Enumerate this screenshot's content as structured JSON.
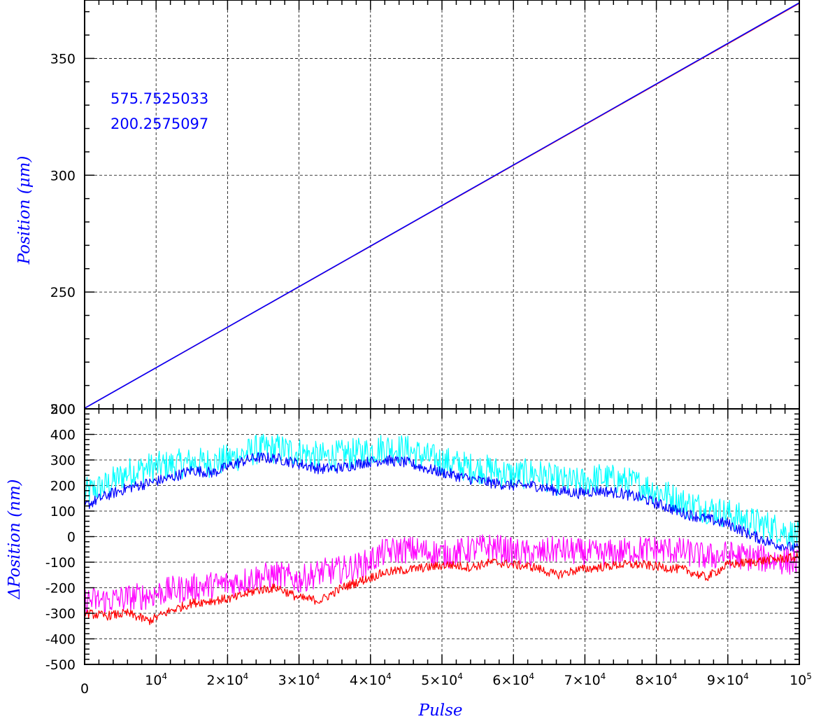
{
  "colors": {
    "frame": "#000000",
    "grid": "#000000",
    "label_blue": "#0000ff",
    "series_blue": "#0000ff",
    "series_red": "#ff0000",
    "series_cyan": "#00ffff",
    "series_magenta": "#ff00ff"
  },
  "x_axis": {
    "title": "Pulse",
    "ticks": [
      {
        "value": 0,
        "base": "0",
        "exp": ""
      },
      {
        "value": 10000,
        "base": "10",
        "exp": "4"
      },
      {
        "value": 20000,
        "base": "2×10",
        "exp": "4"
      },
      {
        "value": 30000,
        "base": "3×10",
        "exp": "4"
      },
      {
        "value": 40000,
        "base": "4×10",
        "exp": "4"
      },
      {
        "value": 50000,
        "base": "5×10",
        "exp": "4"
      },
      {
        "value": 60000,
        "base": "6×10",
        "exp": "4"
      },
      {
        "value": 70000,
        "base": "7×10",
        "exp": "4"
      },
      {
        "value": 80000,
        "base": "8×10",
        "exp": "4"
      },
      {
        "value": 90000,
        "base": "9×10",
        "exp": "4"
      },
      {
        "value": 100000,
        "base": "10",
        "exp": "5"
      }
    ]
  },
  "chart_data": [
    {
      "type": "line",
      "ylabel": "Position (μm)",
      "xlim": [
        0,
        100000
      ],
      "ylim": [
        200,
        375
      ],
      "yticks": [
        200,
        250,
        300,
        350
      ],
      "grid": true,
      "annotations": [
        "575.7525033",
        "200.2575097"
      ],
      "series": [
        {
          "color": "red",
          "x": [
            0,
            100000
          ],
          "y": [
            200.26,
            373.6
          ]
        },
        {
          "color": "blue",
          "x": [
            0,
            100000
          ],
          "y": [
            200.26,
            373.8
          ]
        }
      ]
    },
    {
      "type": "line",
      "ylabel": "ΔPosition (nm)",
      "xlim": [
        0,
        100000
      ],
      "ylim": [
        -500,
        500
      ],
      "yticks": [
        -500,
        -400,
        -300,
        -200,
        -100,
        0,
        100,
        200,
        300,
        400,
        500
      ],
      "grid": true,
      "series": [
        {
          "color": "cyan",
          "noise": 60,
          "x": [
            0,
            3000,
            6000,
            9000,
            12000,
            15000,
            18000,
            21000,
            24000,
            27000,
            30000,
            33000,
            36000,
            39000,
            42000,
            45000,
            48000,
            51000,
            54000,
            57000,
            60000,
            63000,
            66000,
            69000,
            72000,
            75000,
            78000,
            81000,
            84000,
            87000,
            90000,
            93000,
            96000,
            100000
          ],
          "y": [
            170,
            200,
            250,
            270,
            280,
            290,
            290,
            310,
            340,
            345,
            330,
            310,
            320,
            330,
            350,
            340,
            310,
            290,
            270,
            260,
            240,
            250,
            220,
            210,
            230,
            220,
            200,
            170,
            130,
            110,
            90,
            60,
            40,
            0
          ]
        },
        {
          "color": "blue",
          "noise": 22,
          "x": [
            0,
            3000,
            6000,
            9000,
            12000,
            15000,
            18000,
            21000,
            24000,
            27000,
            30000,
            33000,
            36000,
            39000,
            42000,
            45000,
            48000,
            51000,
            54000,
            57000,
            60000,
            63000,
            66000,
            69000,
            72000,
            75000,
            78000,
            81000,
            84000,
            87000,
            90000,
            93000,
            96000,
            100000
          ],
          "y": [
            120,
            160,
            190,
            210,
            230,
            260,
            250,
            285,
            310,
            305,
            285,
            265,
            270,
            290,
            300,
            290,
            265,
            245,
            225,
            210,
            200,
            200,
            180,
            170,
            180,
            170,
            150,
            120,
            90,
            70,
            50,
            10,
            -25,
            -50
          ]
        },
        {
          "color": "magenta",
          "noise": 55,
          "x": [
            0,
            3000,
            6000,
            9000,
            12000,
            15000,
            18000,
            21000,
            24000,
            27000,
            30000,
            33000,
            36000,
            39000,
            42000,
            45000,
            48000,
            51000,
            54000,
            57000,
            60000,
            63000,
            66000,
            69000,
            72000,
            75000,
            78000,
            81000,
            84000,
            87000,
            90000,
            93000,
            96000,
            100000
          ],
          "y": [
            -250,
            -250,
            -240,
            -230,
            -210,
            -200,
            -190,
            -180,
            -160,
            -150,
            -170,
            -140,
            -130,
            -110,
            -60,
            -50,
            -60,
            -70,
            -50,
            -40,
            -60,
            -70,
            -50,
            -60,
            -70,
            -60,
            -50,
            -50,
            -60,
            -80,
            -70,
            -80,
            -90,
            -100
          ]
        },
        {
          "color": "red",
          "noise": 18,
          "x": [
            0,
            3000,
            6000,
            9000,
            12000,
            15000,
            18000,
            21000,
            24000,
            27000,
            30000,
            33000,
            36000,
            39000,
            42000,
            45000,
            48000,
            51000,
            54000,
            57000,
            60000,
            63000,
            66000,
            69000,
            72000,
            75000,
            78000,
            81000,
            84000,
            87000,
            90000,
            93000,
            96000,
            100000
          ],
          "y": [
            -300,
            -310,
            -300,
            -330,
            -290,
            -260,
            -250,
            -240,
            -210,
            -200,
            -240,
            -250,
            -200,
            -170,
            -140,
            -130,
            -120,
            -110,
            -120,
            -100,
            -110,
            -120,
            -150,
            -130,
            -120,
            -110,
            -110,
            -120,
            -130,
            -160,
            -110,
            -100,
            -90,
            -80
          ]
        }
      ]
    }
  ]
}
